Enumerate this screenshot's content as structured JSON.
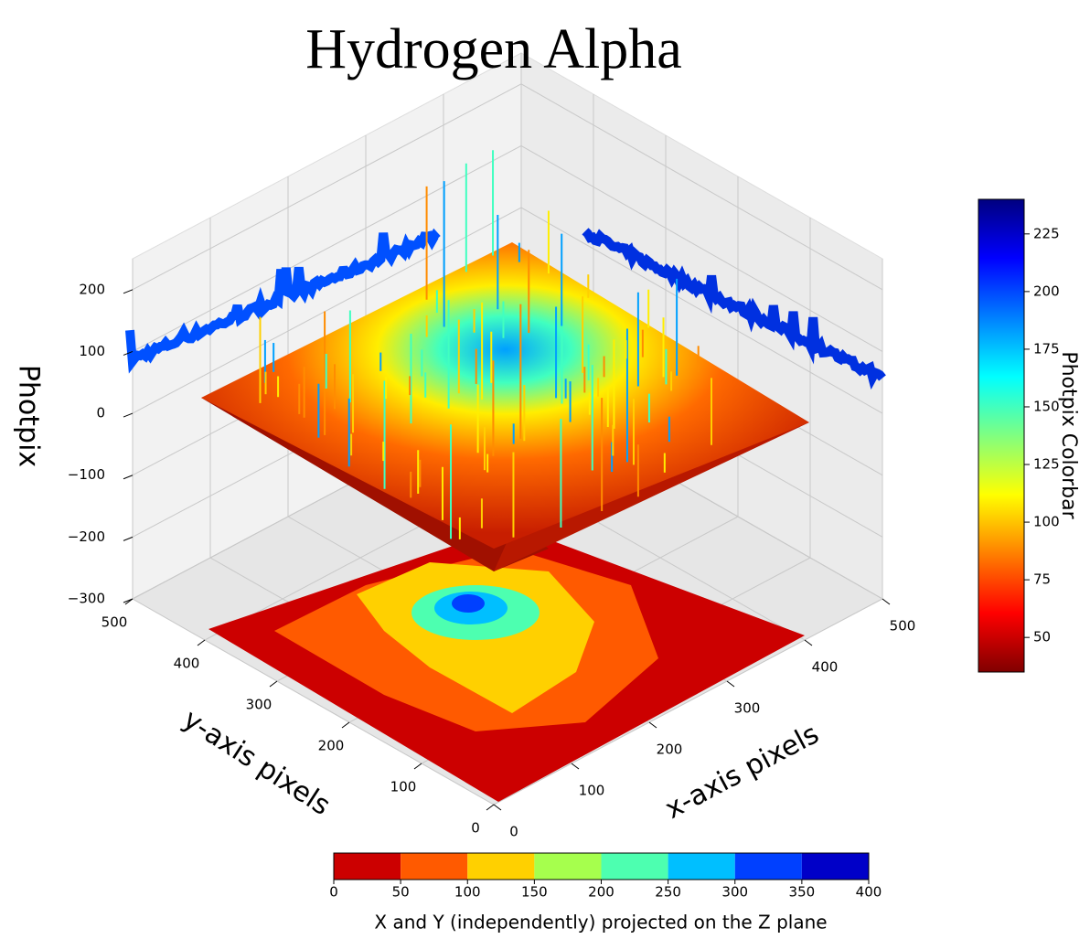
{
  "chart_data": {
    "type": "surface3d",
    "title": "Hydrogen Alpha",
    "xlabel": "x-axis pixels",
    "ylabel": "y-axis pixels",
    "zlabel": "Photpix",
    "xlim": [
      0,
      500
    ],
    "ylim": [
      0,
      500
    ],
    "zlim": [
      -300,
      250
    ],
    "xticks": [
      0,
      100,
      200,
      300,
      400,
      500
    ],
    "yticks": [
      0,
      100,
      200,
      300,
      400,
      500
    ],
    "zticks": [
      {
        "value": -300,
        "label": "−300"
      },
      {
        "value": -200,
        "label": "−200"
      },
      {
        "value": -100,
        "label": "−100"
      },
      0,
      100,
      200
    ],
    "grid": true,
    "colorbar": {
      "label": "Photpix Colorbar",
      "colormap": "jet_r",
      "lim": [
        35,
        240
      ],
      "ticks": [
        50,
        75,
        100,
        125,
        150,
        175,
        200,
        225
      ]
    },
    "projection_colorbar": {
      "label": "X and Y (independently) projected on the Z plane",
      "bins": [
        0,
        50,
        100,
        150,
        200,
        250,
        300,
        350,
        400
      ],
      "colors": [
        "#cc0000",
        "#ff5a00",
        "#ffd000",
        "#a6ff4d",
        "#4dffb0",
        "#00bfff",
        "#0040ff",
        "#0000c8"
      ]
    }
  }
}
